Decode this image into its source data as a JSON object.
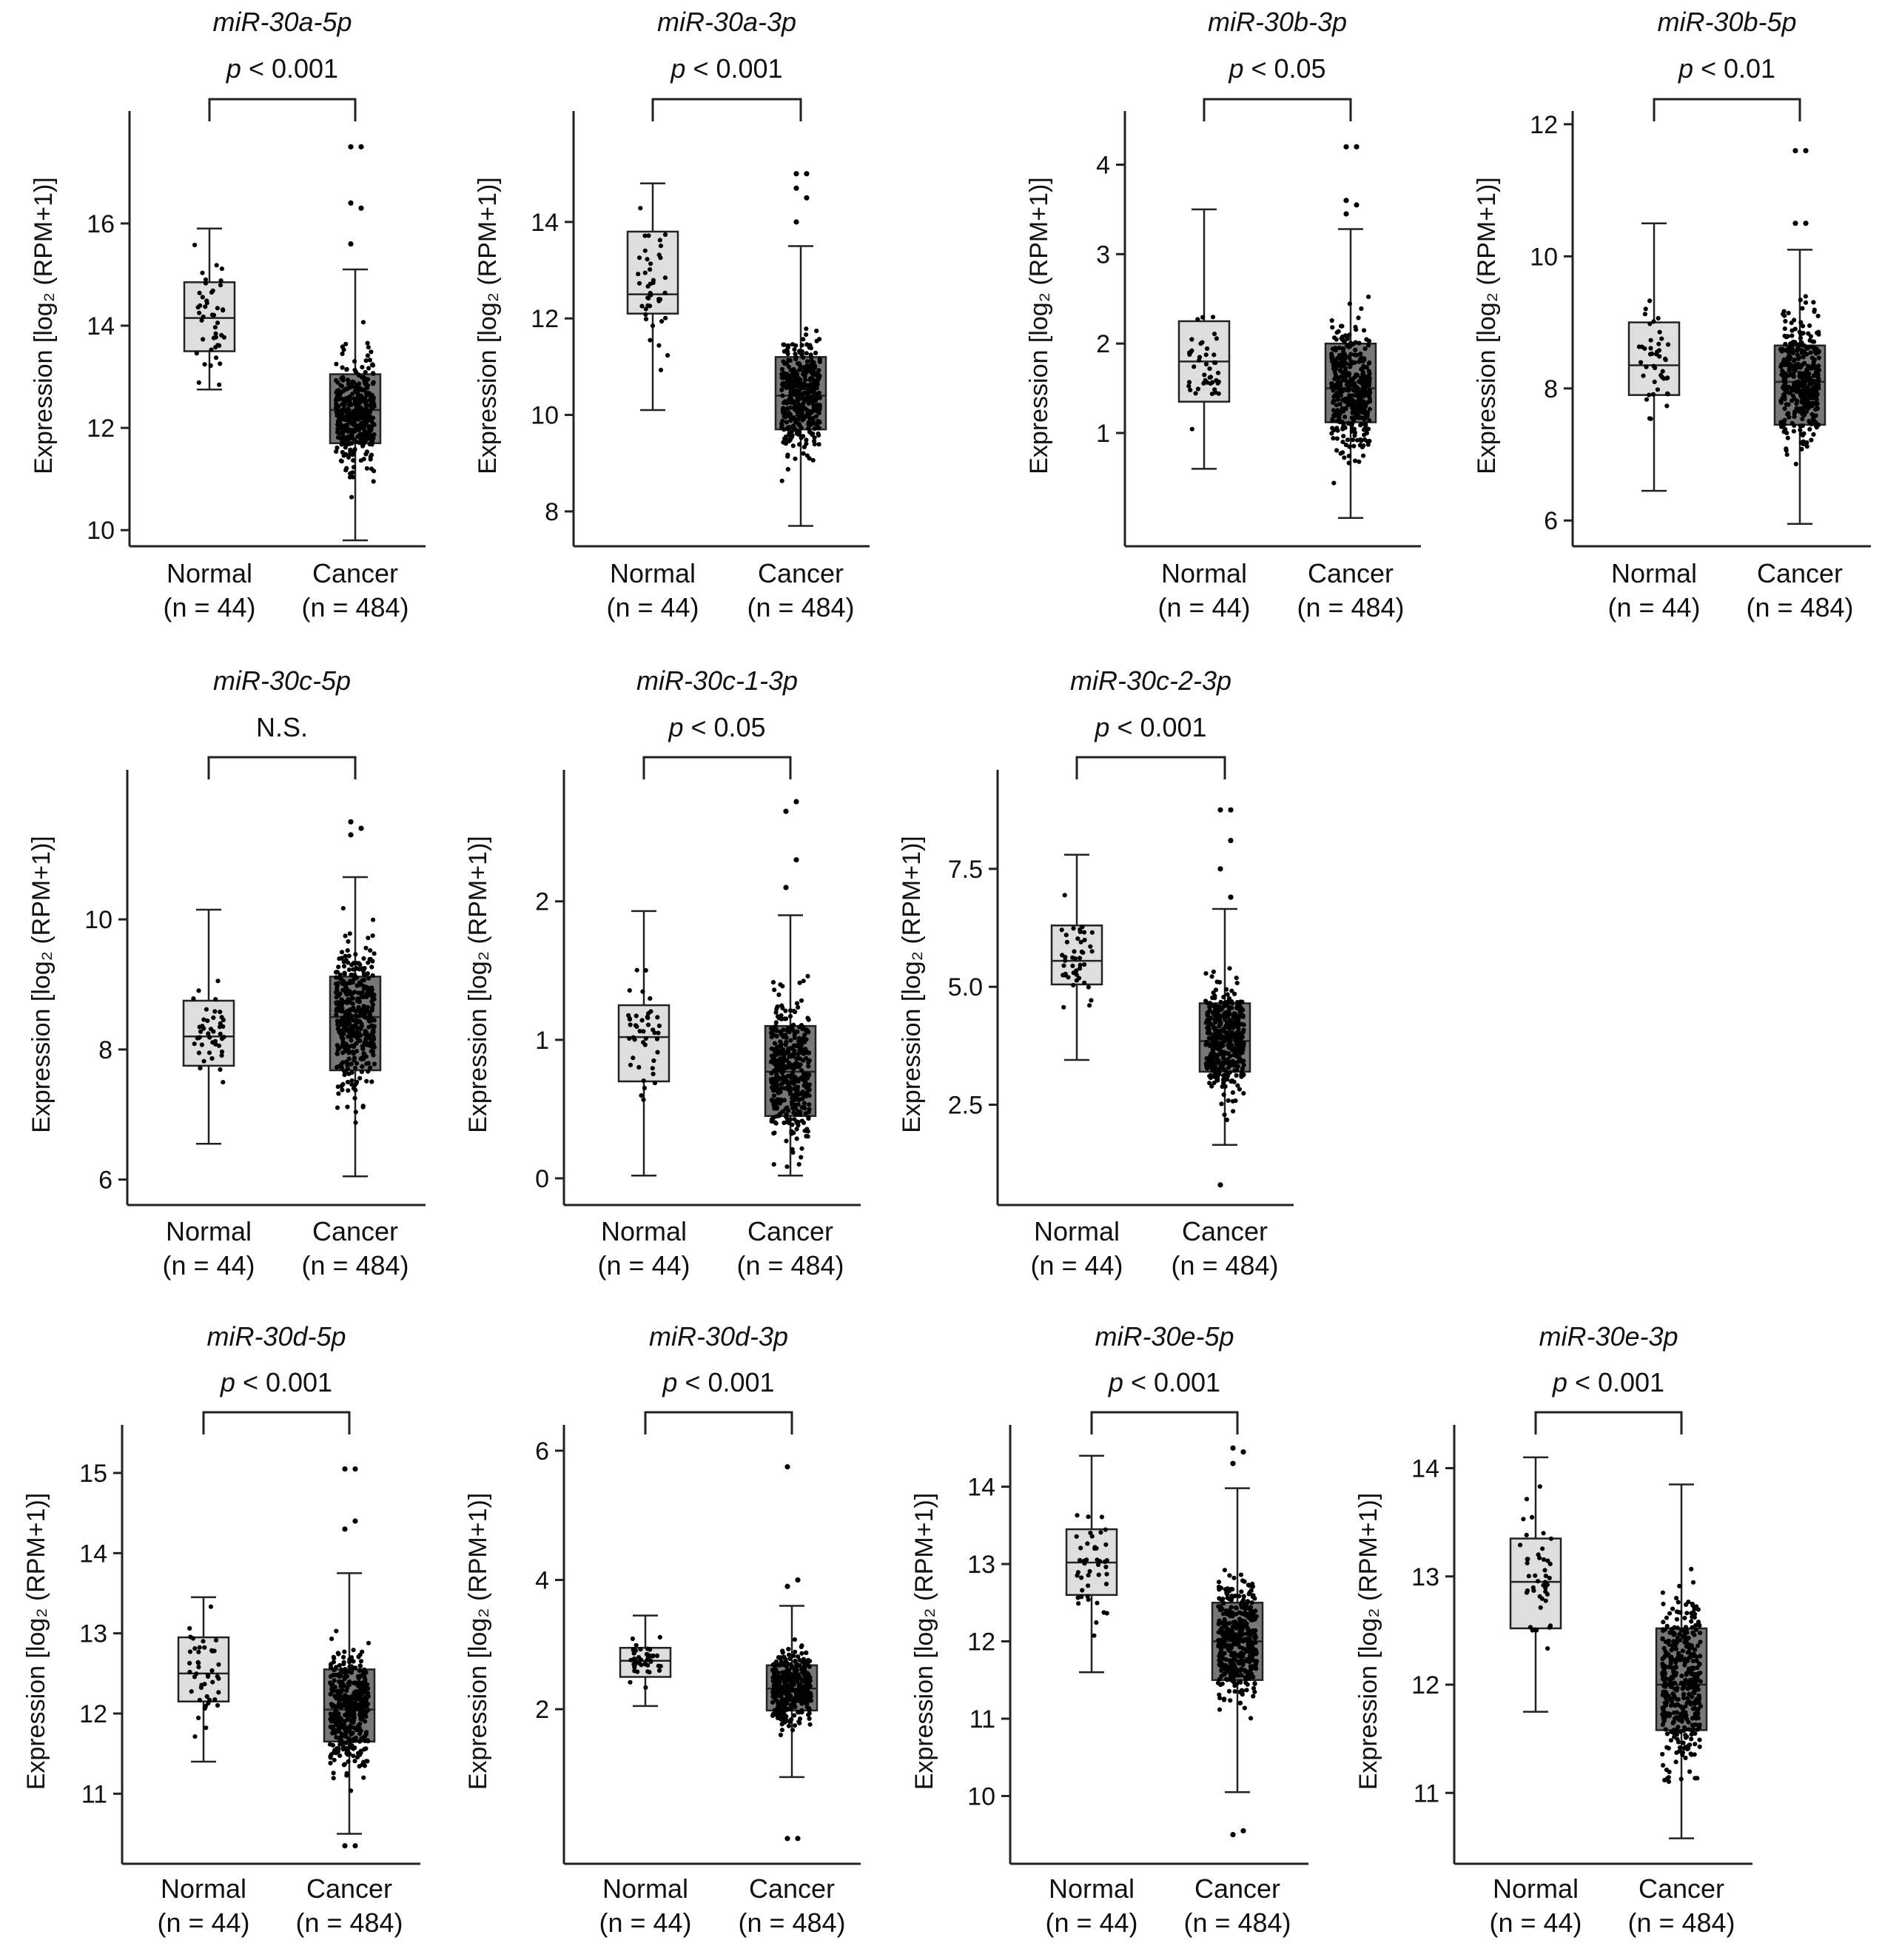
{
  "figure": {
    "ylabel": "Expression [log₂ (RPM+1)]",
    "colors": {
      "normal_box": "#dedede",
      "cancer_box": "#777777",
      "stroke": "#222222",
      "dot": "#000000"
    }
  },
  "chart_data": [
    {
      "type": "box",
      "title": "miR-30a-5p",
      "significance": {
        "prefix": "p",
        "text": " < 0.001"
      },
      "ylim": [
        9.8,
        18.2
      ],
      "yticks": [
        10,
        12,
        14,
        16
      ],
      "groups": [
        {
          "name": "Normal",
          "n_label": "(n = 44)",
          "n": 44,
          "whisker_low": 12.75,
          "q1": 13.5,
          "median": 14.15,
          "q3": 14.85,
          "whisker_high": 15.9,
          "outliers": []
        },
        {
          "name": "Cancer",
          "n_label": "(n = 484)",
          "n": 484,
          "whisker_low": 9.8,
          "q1": 11.7,
          "median": 12.35,
          "q3": 13.05,
          "whisker_high": 15.1,
          "outliers": [
            15.6,
            16.3,
            16.4,
            17.5,
            17.5
          ]
        }
      ]
    },
    {
      "type": "box",
      "title": "miR-30a-3p",
      "significance": {
        "prefix": "p",
        "text": " < 0.001"
      },
      "ylim": [
        7.4,
        16.3
      ],
      "yticks": [
        8,
        10,
        12,
        14
      ],
      "groups": [
        {
          "name": "Normal",
          "n_label": "(n = 44)",
          "n": 44,
          "whisker_low": 10.1,
          "q1": 12.1,
          "median": 12.5,
          "q3": 13.8,
          "whisker_high": 14.8,
          "outliers": []
        },
        {
          "name": "Cancer",
          "n_label": "(n = 484)",
          "n": 484,
          "whisker_low": 7.7,
          "q1": 9.7,
          "median": 10.4,
          "q3": 11.2,
          "whisker_high": 13.5,
          "outliers": [
            14.0,
            14.5,
            14.7,
            15.0,
            15.0
          ]
        }
      ]
    },
    {
      "type": "box",
      "title": "miR-30b-3p",
      "significance": {
        "prefix": "p",
        "text": " < 0.05"
      },
      "ylim": [
        -0.2,
        4.6
      ],
      "yticks": [
        1,
        2,
        3,
        4
      ],
      "groups": [
        {
          "name": "Normal",
          "n_label": "(n = 44)",
          "n": 44,
          "whisker_low": 0.6,
          "q1": 1.35,
          "median": 1.8,
          "q3": 2.25,
          "whisker_high": 3.5,
          "outliers": []
        },
        {
          "name": "Cancer",
          "n_label": "(n = 484)",
          "n": 484,
          "whisker_low": 0.05,
          "q1": 1.12,
          "median": 1.5,
          "q3": 2.0,
          "whisker_high": 3.28,
          "outliers": [
            3.45,
            3.55,
            3.6,
            4.2,
            4.2
          ]
        }
      ]
    },
    {
      "type": "box",
      "title": "miR-30b-5p",
      "significance": {
        "prefix": "p",
        "text": " < 0.01"
      },
      "ylim": [
        5.7,
        12.2
      ],
      "yticks": [
        6,
        8,
        10,
        12
      ],
      "groups": [
        {
          "name": "Normal",
          "n_label": "(n = 44)",
          "n": 44,
          "whisker_low": 6.45,
          "q1": 7.9,
          "median": 8.35,
          "q3": 9.0,
          "whisker_high": 10.5,
          "outliers": []
        },
        {
          "name": "Cancer",
          "n_label": "(n = 484)",
          "n": 484,
          "whisker_low": 5.95,
          "q1": 7.45,
          "median": 8.1,
          "q3": 8.65,
          "whisker_high": 10.1,
          "outliers": [
            10.5,
            10.5,
            11.6,
            11.6
          ]
        }
      ]
    },
    {
      "type": "box",
      "title": "miR-30c-5p",
      "significance": {
        "prefix": "",
        "text": "N.S."
      },
      "ylim": [
        5.7,
        12.3
      ],
      "yticks": [
        6,
        8,
        10
      ],
      "groups": [
        {
          "name": "Normal",
          "n_label": "(n = 44)",
          "n": 44,
          "whisker_low": 6.55,
          "q1": 7.75,
          "median": 8.2,
          "q3": 8.75,
          "whisker_high": 10.15,
          "outliers": []
        },
        {
          "name": "Cancer",
          "n_label": "(n = 484)",
          "n": 484,
          "whisker_low": 6.05,
          "q1": 7.68,
          "median": 8.5,
          "q3": 9.12,
          "whisker_high": 10.65,
          "outliers": [
            11.3,
            11.4,
            11.5
          ]
        }
      ]
    },
    {
      "type": "box",
      "title": "miR-30c-1-3p",
      "significance": {
        "prefix": "p",
        "text": " < 0.05"
      },
      "ylim": [
        -0.15,
        2.95
      ],
      "yticks": [
        0,
        1,
        2
      ],
      "groups": [
        {
          "name": "Normal",
          "n_label": "(n = 44)",
          "n": 44,
          "whisker_low": 0.02,
          "q1": 0.7,
          "median": 1.02,
          "q3": 1.25,
          "whisker_high": 1.93,
          "outliers": []
        },
        {
          "name": "Cancer",
          "n_label": "(n = 484)",
          "n": 484,
          "whisker_low": 0.02,
          "q1": 0.45,
          "median": 0.77,
          "q3": 1.1,
          "whisker_high": 1.9,
          "outliers": [
            2.1,
            2.3,
            2.65,
            2.72
          ]
        }
      ]
    },
    {
      "type": "box",
      "title": "miR-30c-2-3p",
      "significance": {
        "prefix": "p",
        "text": " < 0.001"
      },
      "ylim": [
        0.5,
        9.6
      ],
      "yticks": [
        2.5,
        5.0,
        7.5
      ],
      "tick_labels": [
        "2.5",
        "5.0",
        "7.5"
      ],
      "groups": [
        {
          "name": "Normal",
          "n_label": "(n = 44)",
          "n": 44,
          "whisker_low": 3.45,
          "q1": 5.05,
          "median": 5.55,
          "q3": 6.3,
          "whisker_high": 7.8,
          "outliers": []
        },
        {
          "name": "Cancer",
          "n_label": "(n = 484)",
          "n": 484,
          "whisker_low": 1.65,
          "q1": 3.2,
          "median": 3.85,
          "q3": 4.65,
          "whisker_high": 6.65,
          "outliers": [
            0.8,
            6.9,
            7.5,
            8.1,
            8.75,
            8.75
          ]
        }
      ]
    },
    {
      "type": "box",
      "title": "miR-30d-5p",
      "significance": {
        "prefix": "p",
        "text": " < 0.001"
      },
      "ylim": [
        10.2,
        15.6
      ],
      "yticks": [
        11,
        12,
        13,
        14,
        15
      ],
      "groups": [
        {
          "name": "Normal",
          "n_label": "(n = 44)",
          "n": 44,
          "whisker_low": 11.4,
          "q1": 12.15,
          "median": 12.5,
          "q3": 12.95,
          "whisker_high": 13.45,
          "outliers": []
        },
        {
          "name": "Cancer",
          "n_label": "(n = 484)",
          "n": 484,
          "whisker_low": 10.5,
          "q1": 11.65,
          "median": 12.05,
          "q3": 12.55,
          "whisker_high": 13.75,
          "outliers": [
            10.35,
            10.35,
            14.3,
            14.4,
            15.05,
            15.05
          ]
        }
      ]
    },
    {
      "type": "box",
      "title": "miR-30d-3p",
      "significance": {
        "prefix": "p",
        "text": " < 0.001"
      },
      "ylim": [
        -0.3,
        6.4
      ],
      "yticks": [
        2,
        4,
        6
      ],
      "groups": [
        {
          "name": "Normal",
          "n_label": "(n = 44)",
          "n": 44,
          "whisker_low": 2.05,
          "q1": 2.5,
          "median": 2.75,
          "q3": 2.95,
          "whisker_high": 3.45,
          "outliers": []
        },
        {
          "name": "Cancer",
          "n_label": "(n = 484)",
          "n": 484,
          "whisker_low": 0.95,
          "q1": 1.98,
          "median": 2.32,
          "q3": 2.68,
          "whisker_high": 3.6,
          "outliers": [
            0.0,
            0.0,
            3.9,
            4.0,
            5.75
          ]
        }
      ]
    },
    {
      "type": "box",
      "title": "miR-30e-5p",
      "significance": {
        "prefix": "p",
        "text": " < 0.001"
      },
      "ylim": [
        9.2,
        14.8
      ],
      "yticks": [
        10,
        11,
        12,
        13,
        14
      ],
      "groups": [
        {
          "name": "Normal",
          "n_label": "(n = 44)",
          "n": 44,
          "whisker_low": 11.6,
          "q1": 12.6,
          "median": 13.02,
          "q3": 13.45,
          "whisker_high": 14.4,
          "outliers": []
        },
        {
          "name": "Cancer",
          "n_label": "(n = 484)",
          "n": 484,
          "whisker_low": 10.05,
          "q1": 11.5,
          "median": 12.0,
          "q3": 12.5,
          "whisker_high": 13.98,
          "outliers": [
            9.5,
            9.55,
            14.3,
            14.45,
            14.5
          ]
        }
      ]
    },
    {
      "type": "box",
      "title": "miR-30e-3p",
      "significance": {
        "prefix": "p",
        "text": " < 0.001"
      },
      "ylim": [
        10.4,
        14.4
      ],
      "yticks": [
        11,
        12,
        13,
        14
      ],
      "groups": [
        {
          "name": "Normal",
          "n_label": "(n = 44)",
          "n": 44,
          "whisker_low": 11.75,
          "q1": 12.52,
          "median": 12.95,
          "q3": 13.35,
          "whisker_high": 14.1,
          "outliers": []
        },
        {
          "name": "Cancer",
          "n_label": "(n = 484)",
          "n": 484,
          "whisker_low": 10.58,
          "q1": 11.58,
          "median": 12.0,
          "q3": 12.52,
          "whisker_high": 13.85,
          "outliers": []
        }
      ]
    }
  ]
}
